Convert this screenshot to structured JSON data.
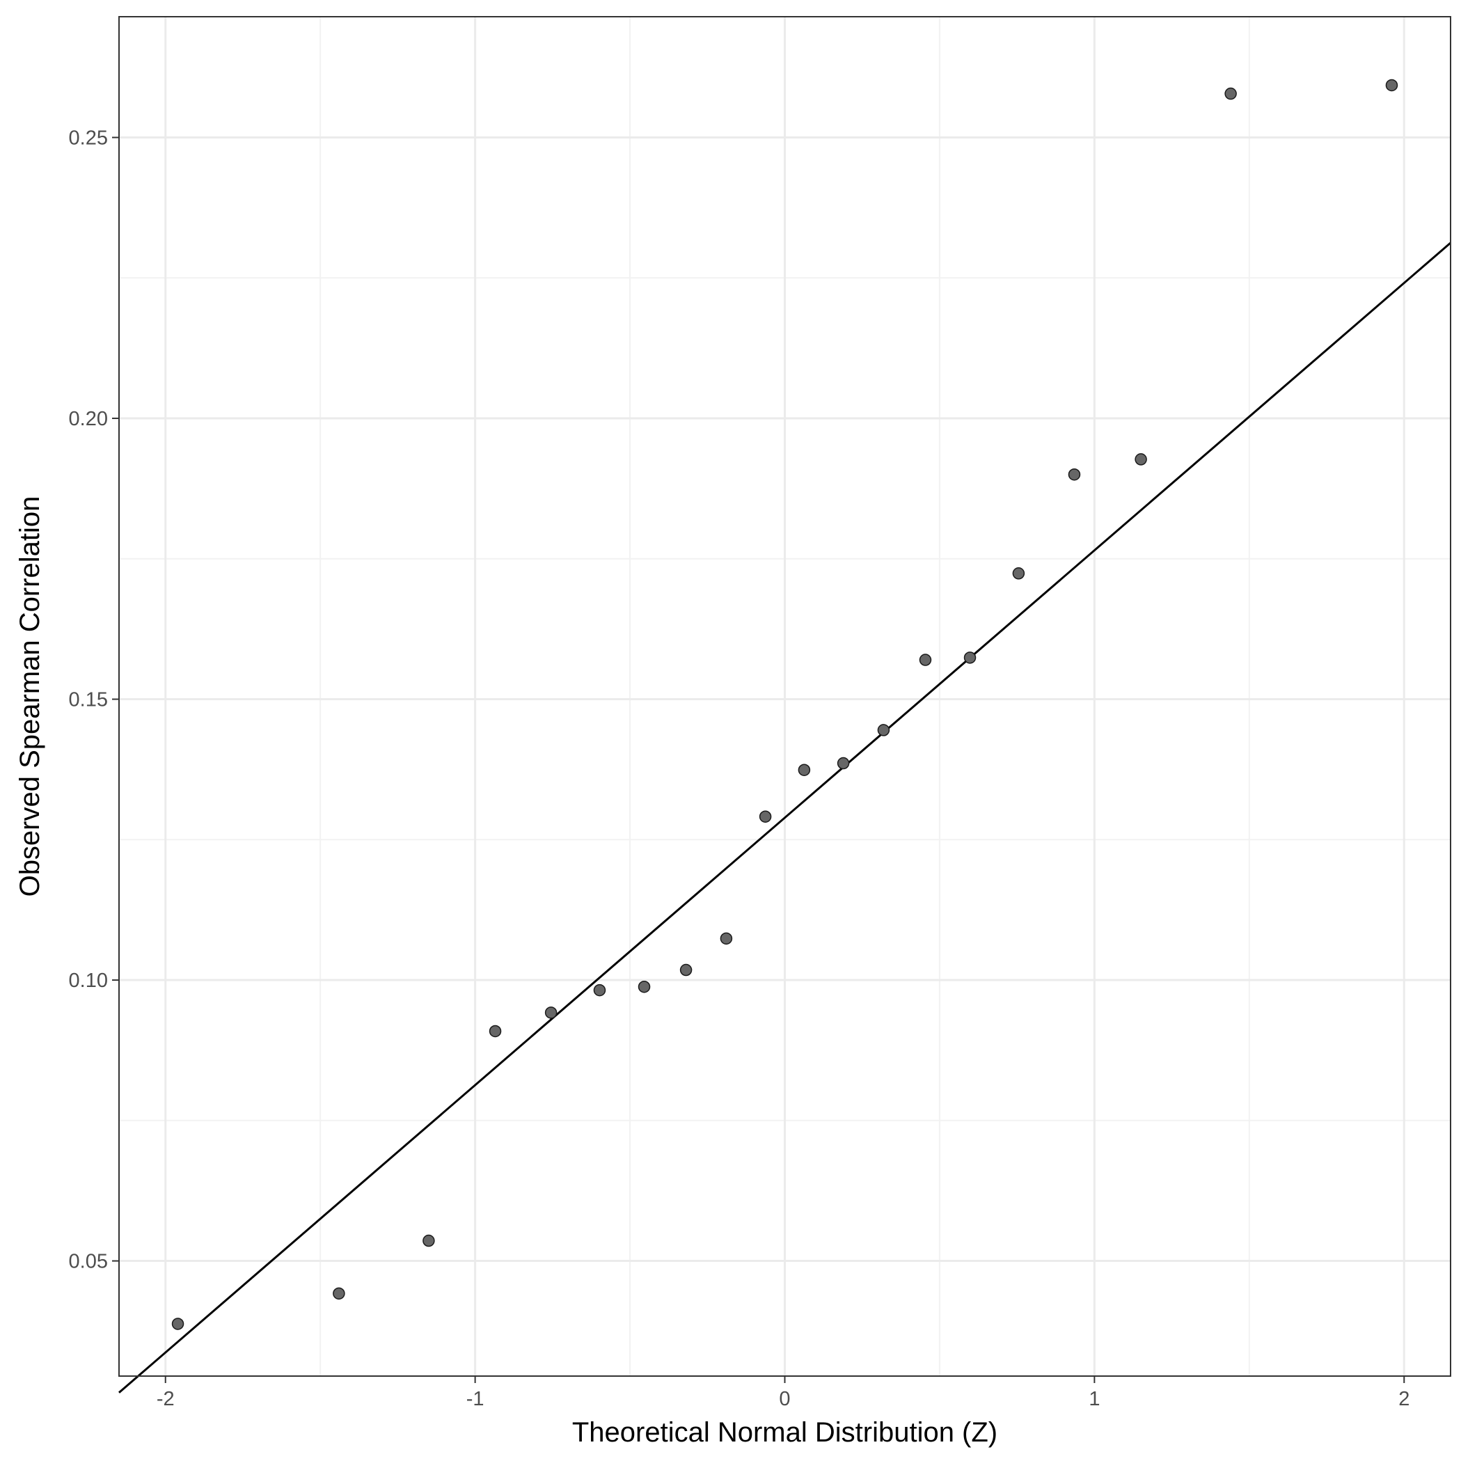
{
  "chart_data": {
    "type": "scatter",
    "title": "",
    "xlabel": "Theoretical Normal Distribution (Z)",
    "ylabel": "Observed Spearman Correlation",
    "xlim": [
      -2.15,
      2.15
    ],
    "ylim": [
      0.0295,
      0.2715
    ],
    "x_ticks": [
      -2,
      -1,
      0,
      1,
      2
    ],
    "x_tick_labels": [
      "-2",
      "-1",
      "0",
      "1",
      "2"
    ],
    "y_ticks": [
      0.05,
      0.1,
      0.15,
      0.2,
      0.25
    ],
    "y_tick_labels": [
      "0.05",
      "0.10",
      "0.15",
      "0.20",
      "0.25"
    ],
    "grid": true,
    "legend": "none",
    "colors": {
      "points": "#666666",
      "point_outline": "#1a1a1a",
      "reference_line": "#000000",
      "grid_major": "#ebebeb",
      "grid_minor": "#f2f2f2",
      "panel_border": "#333333"
    },
    "points": [
      {
        "x": -1.96,
        "y": 0.0388
      },
      {
        "x": -1.44,
        "y": 0.0442
      },
      {
        "x": -1.15,
        "y": 0.0536
      },
      {
        "x": -0.935,
        "y": 0.0909
      },
      {
        "x": -0.755,
        "y": 0.0942
      },
      {
        "x": -0.598,
        "y": 0.0982
      },
      {
        "x": -0.454,
        "y": 0.0988
      },
      {
        "x": -0.319,
        "y": 0.1018
      },
      {
        "x": -0.189,
        "y": 0.1074
      },
      {
        "x": -0.0627,
        "y": 0.1291
      },
      {
        "x": 0.0627,
        "y": 0.1374
      },
      {
        "x": 0.189,
        "y": 0.1386
      },
      {
        "x": 0.319,
        "y": 0.1445
      },
      {
        "x": 0.454,
        "y": 0.157
      },
      {
        "x": 0.598,
        "y": 0.1574
      },
      {
        "x": 0.755,
        "y": 0.1724
      },
      {
        "x": 0.935,
        "y": 0.19
      },
      {
        "x": 1.15,
        "y": 0.1927
      },
      {
        "x": 1.44,
        "y": 0.2578
      },
      {
        "x": 1.96,
        "y": 0.2593
      }
    ],
    "reference_line": {
      "intercept": 0.1289,
      "slope": 0.0476
    }
  }
}
